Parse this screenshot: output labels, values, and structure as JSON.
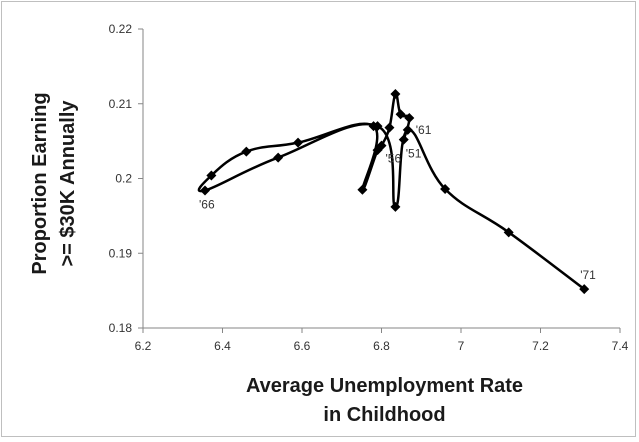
{
  "chart_data": {
    "type": "line",
    "title": "",
    "xlabel_lines": [
      "Average Unemployment Rate",
      "in Childhood"
    ],
    "ylabel_lines": [
      "Proportion Earning",
      ">= $30K Annually"
    ],
    "xlim": [
      6.2,
      7.4
    ],
    "ylim": [
      0.18,
      0.22
    ],
    "x_ticks": [
      "6.2",
      "6.4",
      "6.6",
      "6.8",
      "7",
      "7.2",
      "7.4"
    ],
    "y_ticks": [
      "0.18",
      "0.19",
      "0.2",
      "0.21",
      "0.22"
    ],
    "grid": false,
    "legend": "none",
    "marker": "diamond",
    "line_color": "#000000",
    "series": [
      {
        "points": [
          {
            "x": 6.856,
            "y": 0.2052
          },
          {
            "x": 6.87,
            "y": 0.2081
          },
          {
            "x": 6.848,
            "y": 0.2086
          },
          {
            "x": 6.835,
            "y": 0.2113
          },
          {
            "x": 6.82,
            "y": 0.2068
          },
          {
            "x": 6.8,
            "y": 0.2044
          },
          {
            "x": 6.79,
            "y": 0.2038
          },
          {
            "x": 6.752,
            "y": 0.1985
          },
          {
            "x": 6.78,
            "y": 0.207
          },
          {
            "x": 6.59,
            "y": 0.2048
          },
          {
            "x": 6.46,
            "y": 0.2036
          },
          {
            "x": 6.372,
            "y": 0.2004
          },
          {
            "x": 6.356,
            "y": 0.1984
          },
          {
            "x": 6.54,
            "y": 0.2028
          },
          {
            "x": 6.79,
            "y": 0.207
          },
          {
            "x": 6.835,
            "y": 0.1962
          },
          {
            "x": 6.866,
            "y": 0.2065
          },
          {
            "x": 6.96,
            "y": 0.1986
          },
          {
            "x": 7.12,
            "y": 0.1928
          },
          {
            "x": 7.31,
            "y": 0.1852
          }
        ]
      }
    ],
    "annotations": [
      {
        "text": "'66",
        "x": 6.356,
        "y": 0.1984
      },
      {
        "text": "'56",
        "x": 6.8,
        "y": 0.2044
      },
      {
        "text": "'51",
        "x": 6.856,
        "y": 0.2052
      },
      {
        "text": "'61",
        "x": 6.866,
        "y": 0.2065
      },
      {
        "text": "'71",
        "x": 7.31,
        "y": 0.1852
      }
    ]
  }
}
